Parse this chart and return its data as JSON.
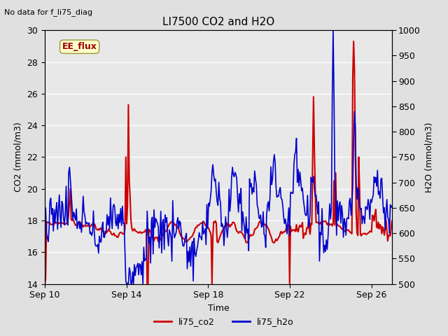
{
  "title": "LI7500 CO2 and H2O",
  "top_left_text": "No data for f_li75_diag",
  "xlabel": "Time",
  "ylabel_left": "CO2 (mmol/m3)",
  "ylabel_right": "H2O (mmol/m3)",
  "ylim_left": [
    14,
    30
  ],
  "ylim_right": [
    500,
    1000
  ],
  "co2_color": "#cc0000",
  "h2o_color": "#0000cc",
  "fig_bg_color": "#e0e0e0",
  "plot_bg_color": "#e8e8e8",
  "legend_items": [
    "li75_co2",
    "li75_h2o"
  ],
  "ee_flux_label": "EE_flux",
  "ee_flux_bg": "#ffffcc",
  "ee_flux_border": "#999933",
  "ee_flux_text_color": "#990000",
  "xtick_labels": [
    "Sep 10",
    "Sep 14",
    "Sep 18",
    "Sep 22",
    "Sep 26"
  ],
  "yticks_left": [
    14,
    16,
    18,
    20,
    22,
    24,
    26,
    28,
    30
  ],
  "yticks_right": [
    500,
    550,
    600,
    650,
    700,
    750,
    800,
    850,
    900,
    950,
    1000
  ],
  "co2_linewidth": 1.5,
  "h2o_linewidth": 1.2
}
